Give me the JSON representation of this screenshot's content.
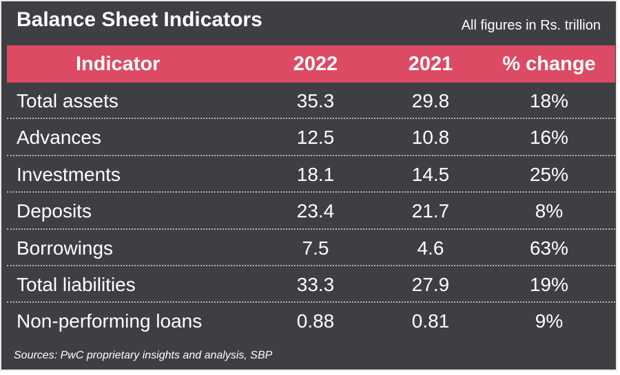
{
  "title": "Balance Sheet Indicators",
  "units_note": "All figures in Rs. trillion",
  "source": "Sources: PwC proprietary insights and analysis, SBP",
  "colors": {
    "background": "#3e3f42",
    "header": "#dd4a63",
    "text": "#ffffff"
  },
  "chart_data": {
    "type": "table",
    "columns": [
      "Indicator",
      "2022",
      "2021",
      "% change"
    ],
    "rows": [
      {
        "indicator": "Total assets",
        "y2022": "35.3",
        "y2021": "29.8",
        "change": "18%"
      },
      {
        "indicator": "Advances",
        "y2022": "12.5",
        "y2021": "10.8",
        "change": "16%"
      },
      {
        "indicator": "Investments",
        "y2022": "18.1",
        "y2021": "14.5",
        "change": "25%"
      },
      {
        "indicator": "Deposits",
        "y2022": "23.4",
        "y2021": "21.7",
        "change": "8%"
      },
      {
        "indicator": "Borrowings",
        "y2022": "7.5",
        "y2021": "4.6",
        "change": "63%"
      },
      {
        "indicator": "Total liabilities",
        "y2022": "33.3",
        "y2021": "27.9",
        "change": "19%"
      },
      {
        "indicator": "Non-performing loans",
        "y2022": "0.88",
        "y2021": "0.81",
        "change": "9%"
      }
    ]
  }
}
